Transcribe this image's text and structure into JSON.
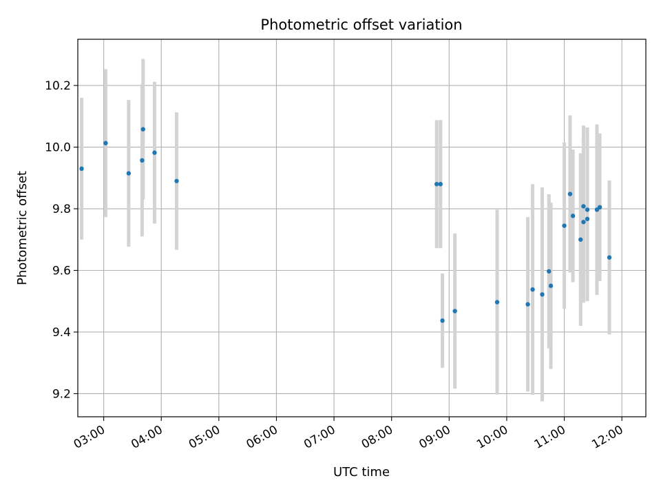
{
  "chart_data": {
    "type": "scatter",
    "title": "Photometric offset variation",
    "xlabel": "UTC time",
    "ylabel": "Photometric offset",
    "xlim": [
      "02:33",
      "12:25"
    ],
    "ylim": [
      9.125,
      10.35
    ],
    "grid": true,
    "x_ticks": [
      "03:00",
      "04:00",
      "05:00",
      "06:00",
      "07:00",
      "08:00",
      "09:00",
      "10:00",
      "11:00",
      "12:00"
    ],
    "y_ticks": [
      9.2,
      9.4,
      9.6,
      9.8,
      10.0,
      10.2
    ],
    "marker_color": "#1f77b4",
    "errorbar_color": "#d3d3d3",
    "series": [
      {
        "points": [
          {
            "x": "02:37",
            "y": 9.93,
            "err": 0.23
          },
          {
            "x": "03:02",
            "y": 10.013,
            "err": 0.24
          },
          {
            "x": "03:26",
            "y": 9.915,
            "err": 0.238
          },
          {
            "x": "03:40",
            "y": 9.957,
            "err": 0.247
          },
          {
            "x": "03:41",
            "y": 10.058,
            "err": 0.228
          },
          {
            "x": "03:53",
            "y": 9.982,
            "err": 0.23
          },
          {
            "x": "04:16",
            "y": 9.89,
            "err": 0.223
          },
          {
            "x": "08:47",
            "y": 9.88,
            "err": 0.208
          },
          {
            "x": "08:51",
            "y": 9.88,
            "err": 0.208
          },
          {
            "x": "08:53",
            "y": 9.437,
            "err": 0.153
          },
          {
            "x": "09:06",
            "y": 9.468,
            "err": 0.252
          },
          {
            "x": "09:50",
            "y": 9.497,
            "err": 0.3
          },
          {
            "x": "10:22",
            "y": 9.49,
            "err": 0.283
          },
          {
            "x": "10:27",
            "y": 9.538,
            "err": 0.342
          },
          {
            "x": "10:37",
            "y": 9.522,
            "err": 0.347
          },
          {
            "x": "10:44",
            "y": 9.597,
            "err": 0.25
          },
          {
            "x": "10:46",
            "y": 9.55,
            "err": 0.27
          },
          {
            "x": "11:00",
            "y": 9.745,
            "err": 0.27
          },
          {
            "x": "11:06",
            "y": 9.848,
            "err": 0.255
          },
          {
            "x": "11:09",
            "y": 9.777,
            "err": 0.215
          },
          {
            "x": "11:17",
            "y": 9.7,
            "err": 0.28
          },
          {
            "x": "11:20",
            "y": 9.808,
            "err": 0.262
          },
          {
            "x": "11:20",
            "y": 9.757,
            "err": 0.262
          },
          {
            "x": "11:24",
            "y": 9.767,
            "err": 0.267
          },
          {
            "x": "11:24",
            "y": 9.797,
            "err": 0.267
          },
          {
            "x": "11:34",
            "y": 9.797,
            "err": 0.277
          },
          {
            "x": "11:37",
            "y": 9.805,
            "err": 0.24
          },
          {
            "x": "11:47",
            "y": 9.642,
            "err": 0.25
          }
        ]
      }
    ]
  }
}
